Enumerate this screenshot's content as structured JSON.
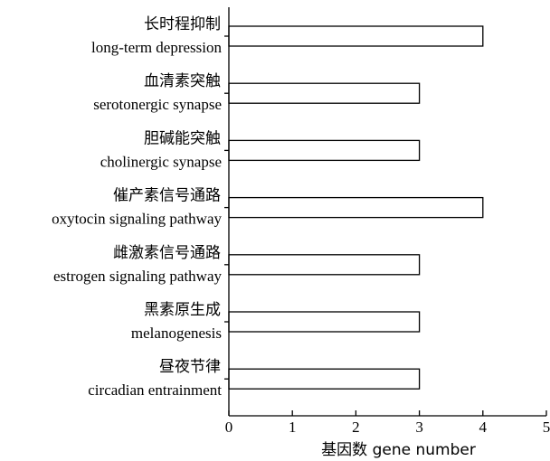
{
  "chart_data": {
    "type": "bar",
    "orientation": "horizontal",
    "categories": [
      {
        "zh": "长时程抑制",
        "en": "long-term depression"
      },
      {
        "zh": "血清素突触",
        "en": "serotonergic synapse"
      },
      {
        "zh": "胆碱能突触",
        "en": "cholinergic synapse"
      },
      {
        "zh": "催产素信号通路",
        "en": "oxytocin signaling pathway"
      },
      {
        "zh": "雌激素信号通路",
        "en": "estrogen signaling pathway"
      },
      {
        "zh": "黑素原生成",
        "en": "melanogenesis"
      },
      {
        "zh": "昼夜节律",
        "en": "circadian entrainment"
      }
    ],
    "values": [
      4,
      3,
      3,
      4,
      3,
      3,
      3
    ],
    "xlabel": "基因数 gene number",
    "ylabel": "",
    "xlim": [
      0,
      5
    ],
    "xticks": [
      "0",
      "1",
      "2",
      "3",
      "4",
      "5"
    ],
    "grid": false,
    "colors": {
      "bar_fill": "#ffffff",
      "bar_stroke": "#000000"
    }
  }
}
